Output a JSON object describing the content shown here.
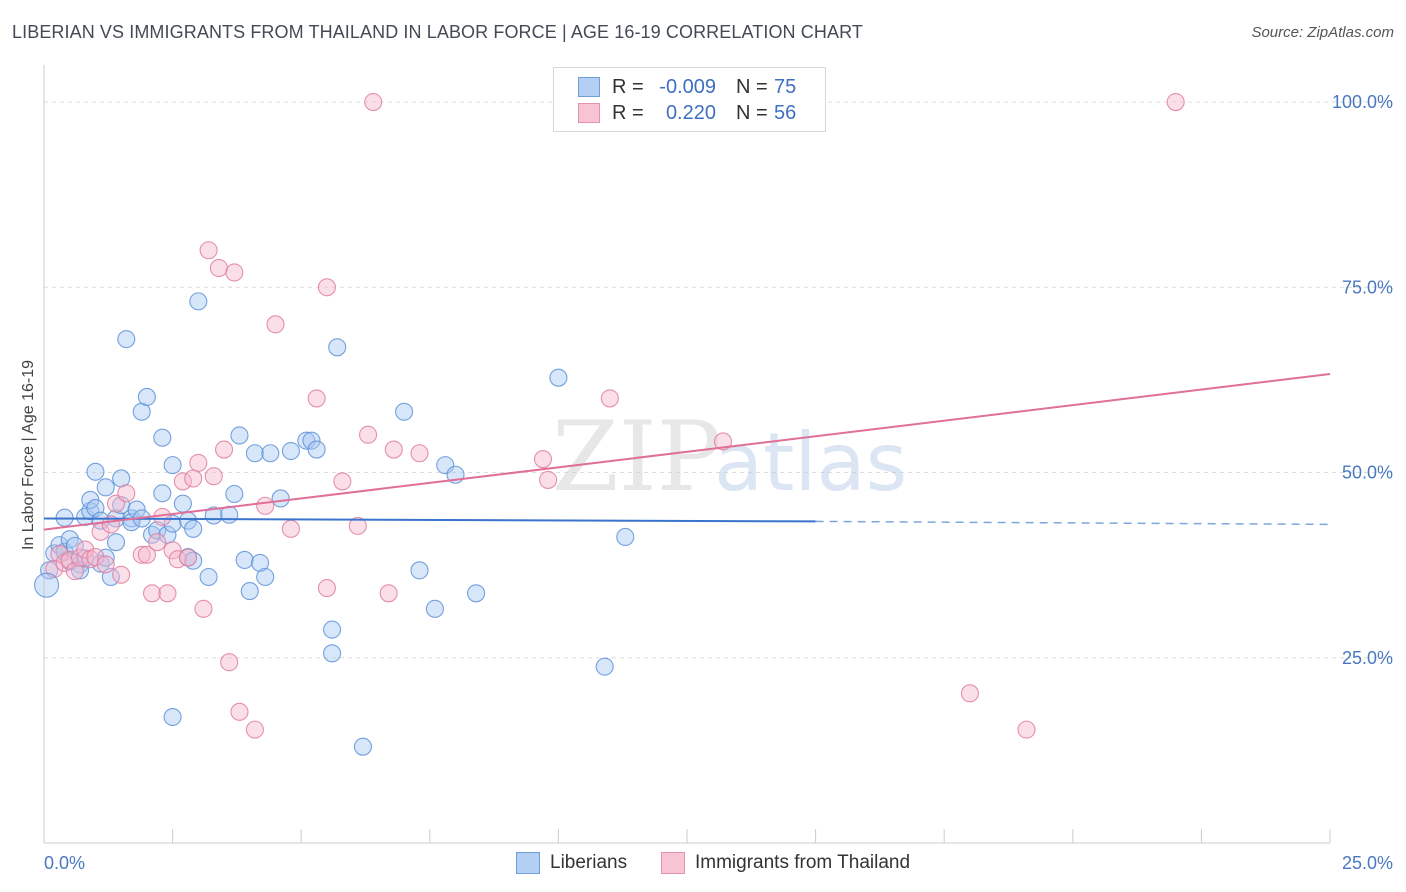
{
  "title": "LIBERIAN VS IMMIGRANTS FROM THAILAND IN LABOR FORCE | AGE 16-19 CORRELATION CHART",
  "source": "Source: ZipAtlas.com",
  "watermark": {
    "zip": "ZIP",
    "atlas": "atlas"
  },
  "legend": {
    "r_label": "R =",
    "n_label": "N =",
    "rows": [
      {
        "name": "Liberians",
        "r": "-0.009",
        "n": "75",
        "fill": "#a9c8f1",
        "stroke": "#5d92d8"
      },
      {
        "name": "Immigrants from Thailand",
        "r": "0.220",
        "n": "56",
        "fill": "#f6b8cc",
        "stroke": "#e07ea0"
      }
    ]
  },
  "chart_data": {
    "type": "scatter",
    "title": "LIBERIAN VS IMMIGRANTS FROM THAILAND IN LABOR FORCE | AGE 16-19 CORRELATION CHART",
    "ylabel": "In Labor Force | Age 16-19",
    "xlabel": "",
    "xlim": [
      0,
      25
    ],
    "ylim": [
      0,
      105
    ],
    "x_tick_labels": [
      {
        "value": 0,
        "label": "0.0%"
      },
      {
        "value": 25,
        "label": "25.0%"
      }
    ],
    "y_tick_labels": [
      {
        "value": 25,
        "label": "25.0%"
      },
      {
        "value": 50,
        "label": "50.0%"
      },
      {
        "value": 75,
        "label": "75.0%"
      },
      {
        "value": 100,
        "label": "100.0%"
      }
    ],
    "grid": true,
    "legend_position": "top-center",
    "series": [
      {
        "name": "Liberians",
        "color": "#5d92d8",
        "fill": "#a9c8f1",
        "trend": {
          "x0": 0,
          "y0": 43.8,
          "x1": 15.0,
          "y1": 43.4,
          "dashed_to_x": 25,
          "dashed_to_y": 43.0
        },
        "points": [
          [
            0.1,
            36.8
          ],
          [
            0.2,
            39.1
          ],
          [
            0.3,
            40.2
          ],
          [
            0.4,
            39.3
          ],
          [
            0.5,
            38.0
          ],
          [
            0.4,
            43.9
          ],
          [
            0.5,
            41.0
          ],
          [
            0.6,
            40.1
          ],
          [
            0.7,
            37.6
          ],
          [
            0.7,
            36.8
          ],
          [
            0.8,
            44.0
          ],
          [
            0.8,
            38.4
          ],
          [
            0.9,
            44.8
          ],
          [
            0.9,
            46.3
          ],
          [
            1.0,
            45.2
          ],
          [
            1.0,
            50.1
          ],
          [
            1.1,
            43.5
          ],
          [
            1.1,
            37.7
          ],
          [
            1.2,
            48.0
          ],
          [
            1.2,
            38.5
          ],
          [
            1.3,
            35.9
          ],
          [
            1.4,
            40.6
          ],
          [
            1.4,
            43.8
          ],
          [
            1.5,
            45.6
          ],
          [
            1.5,
            49.2
          ],
          [
            1.6,
            68.0
          ],
          [
            1.7,
            43.8
          ],
          [
            1.7,
            43.3
          ],
          [
            1.8,
            45.0
          ],
          [
            1.9,
            58.2
          ],
          [
            1.9,
            43.8
          ],
          [
            2.0,
            60.2
          ],
          [
            2.1,
            41.6
          ],
          [
            2.2,
            42.2
          ],
          [
            2.3,
            54.7
          ],
          [
            2.3,
            47.2
          ],
          [
            2.4,
            41.6
          ],
          [
            2.5,
            51.0
          ],
          [
            2.5,
            43.1
          ],
          [
            2.5,
            17.0
          ],
          [
            2.7,
            45.8
          ],
          [
            2.8,
            43.5
          ],
          [
            2.8,
            38.6
          ],
          [
            2.9,
            38.1
          ],
          [
            2.9,
            42.4
          ],
          [
            3.0,
            73.1
          ],
          [
            3.2,
            35.9
          ],
          [
            3.3,
            44.2
          ],
          [
            3.6,
            44.3
          ],
          [
            3.7,
            47.1
          ],
          [
            3.8,
            55.0
          ],
          [
            3.9,
            38.2
          ],
          [
            4.0,
            34.0
          ],
          [
            4.1,
            52.6
          ],
          [
            4.2,
            37.8
          ],
          [
            4.3,
            35.9
          ],
          [
            4.4,
            52.6
          ],
          [
            4.6,
            46.5
          ],
          [
            4.8,
            52.9
          ],
          [
            5.1,
            54.3
          ],
          [
            5.2,
            54.3
          ],
          [
            5.3,
            53.1
          ],
          [
            5.6,
            25.6
          ],
          [
            5.6,
            28.8
          ],
          [
            5.7,
            66.9
          ],
          [
            6.2,
            13.0
          ],
          [
            7.0,
            58.2
          ],
          [
            7.3,
            36.8
          ],
          [
            7.6,
            31.6
          ],
          [
            7.8,
            51.0
          ],
          [
            8.0,
            49.7
          ],
          [
            8.4,
            33.7
          ],
          [
            10.0,
            62.8
          ],
          [
            10.9,
            23.8
          ],
          [
            11.3,
            41.3
          ]
        ]
      },
      {
        "name": "Immigrants from Thailand",
        "color": "#e07ea0",
        "fill": "#f6b8cc",
        "trend": {
          "x0": 0,
          "y0": 42.3,
          "x1": 25,
          "y1": 63.3
        },
        "points": [
          [
            0.2,
            37.0
          ],
          [
            0.3,
            39.0
          ],
          [
            0.4,
            37.8
          ],
          [
            0.5,
            38.2
          ],
          [
            0.6,
            36.7
          ],
          [
            0.7,
            38.5
          ],
          [
            0.8,
            39.6
          ],
          [
            0.9,
            38.3
          ],
          [
            1.0,
            38.6
          ],
          [
            1.1,
            42.0
          ],
          [
            1.2,
            37.6
          ],
          [
            1.3,
            43.0
          ],
          [
            1.4,
            45.8
          ],
          [
            1.5,
            36.2
          ],
          [
            1.6,
            47.2
          ],
          [
            1.9,
            38.9
          ],
          [
            2.0,
            38.9
          ],
          [
            2.1,
            33.7
          ],
          [
            2.2,
            40.6
          ],
          [
            2.3,
            44.0
          ],
          [
            2.4,
            33.7
          ],
          [
            2.5,
            39.5
          ],
          [
            2.6,
            38.3
          ],
          [
            2.7,
            48.8
          ],
          [
            2.8,
            38.5
          ],
          [
            2.9,
            49.2
          ],
          [
            3.0,
            51.3
          ],
          [
            3.1,
            31.6
          ],
          [
            3.2,
            80.0
          ],
          [
            3.3,
            49.5
          ],
          [
            3.4,
            77.6
          ],
          [
            3.5,
            53.1
          ],
          [
            3.6,
            24.4
          ],
          [
            3.7,
            77.0
          ],
          [
            3.8,
            17.7
          ],
          [
            4.1,
            15.3
          ],
          [
            4.3,
            45.5
          ],
          [
            4.5,
            70.0
          ],
          [
            4.8,
            42.4
          ],
          [
            5.3,
            60.0
          ],
          [
            5.5,
            34.4
          ],
          [
            5.5,
            75.0
          ],
          [
            5.8,
            48.8
          ],
          [
            6.1,
            42.8
          ],
          [
            6.3,
            55.1
          ],
          [
            6.4,
            100.0
          ],
          [
            6.7,
            33.7
          ],
          [
            6.8,
            53.1
          ],
          [
            7.3,
            52.6
          ],
          [
            9.7,
            51.8
          ],
          [
            9.8,
            49.0
          ],
          [
            11.0,
            60.0
          ],
          [
            13.2,
            54.2
          ],
          [
            18.0,
            20.2
          ],
          [
            19.1,
            15.3
          ],
          [
            22.0,
            100.0
          ]
        ]
      }
    ]
  }
}
